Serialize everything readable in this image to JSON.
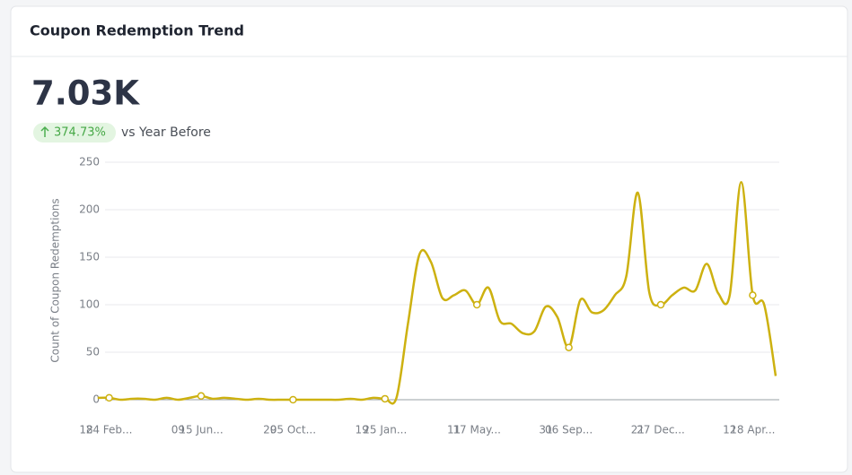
{
  "card": {
    "title": "Coupon Redemption Trend",
    "metric": "7.03K",
    "change": "374.73%",
    "comparison": "vs Year Before"
  },
  "chart_data": {
    "type": "line",
    "y_label": "Count of Coupon Redemptions",
    "categories": [
      "18",
      null,
      "24 Feb...",
      null,
      null,
      null,
      null,
      null,
      "09",
      null,
      "15 Jun...",
      null,
      null,
      null,
      null,
      null,
      "29",
      null,
      "05 Oct...",
      null,
      null,
      null,
      null,
      null,
      "19",
      null,
      "25 Jan...",
      null,
      null,
      null,
      null,
      null,
      "11",
      null,
      "17 May...",
      null,
      null,
      null,
      null,
      null,
      "31",
      null,
      "06 Sep...",
      null,
      null,
      null,
      null,
      null,
      "21",
      null,
      "27 Dec...",
      null,
      null,
      null,
      null,
      null,
      "12",
      null,
      "18 Apr...",
      null,
      null
    ],
    "values": [
      null,
      2,
      2,
      0,
      1,
      1,
      0,
      2,
      0,
      2,
      4,
      1,
      2,
      1,
      0,
      1,
      0,
      0,
      0,
      0,
      0,
      0,
      0,
      1,
      0,
      2,
      1,
      2,
      80,
      153,
      145,
      107,
      110,
      115,
      100,
      118,
      83,
      80,
      70,
      72,
      98,
      87,
      55,
      105,
      92,
      94,
      110,
      130,
      218,
      113,
      100,
      110,
      118,
      115,
      143,
      112,
      110,
      229,
      110,
      100,
      25
    ],
    "color": "#cdb110",
    "ylim": [
      0,
      250
    ],
    "yticks": [
      0,
      50,
      100,
      150,
      200,
      250
    ],
    "grid": true
  }
}
